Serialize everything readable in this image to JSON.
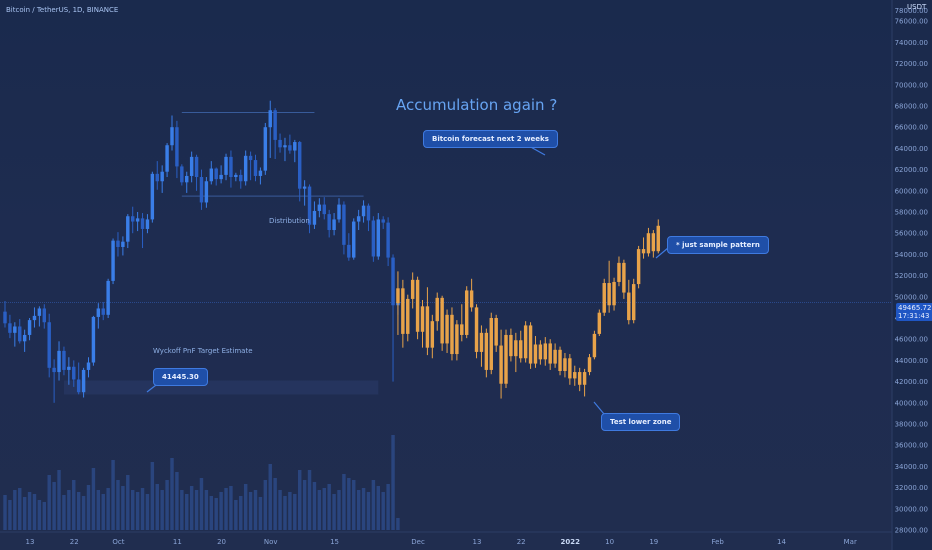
{
  "header": {
    "symbol_line": "Bitcoin / TetherUS, 1D, BINANCE",
    "currency": "USDT"
  },
  "price_tag": {
    "price": "49465.72",
    "countdown": "17:31:43"
  },
  "annotations": {
    "headline": "Accumulation again ?",
    "forecast_callout": "Bitcoin forecast next 2 weeks",
    "pattern_callout": "* just sample pattern",
    "lower_zone_callout": "Test lower zone",
    "target_callout": "41445.30",
    "wyckoff_label": "Wyckoff PnF Target Estimate",
    "distribution_label": "Distribution"
  },
  "colors": {
    "candle": "#3a7ee8",
    "candle_dark": "#2a5fc4",
    "forecast": "#e8a34a",
    "volume": "#2d4a86",
    "axis_text": "#8aa4d6",
    "callout_bg": "#1f4fa8"
  },
  "chart_data": {
    "type": "candlestick",
    "y_axis": {
      "range": [
        28000,
        78000
      ],
      "ticks": [
        28000,
        30000,
        32000,
        34000,
        36000,
        38000,
        40000,
        42000,
        44000,
        46000,
        48000,
        50000,
        52000,
        54000,
        56000,
        58000,
        60000,
        62000,
        64000,
        66000,
        68000,
        70000,
        72000,
        74000,
        76000
      ],
      "tick_labels": [
        "28000.00",
        "30000.00",
        "32000.00",
        "34000.00",
        "36000.00",
        "38000.00",
        "40000.00",
        "42000.00",
        "44000.00",
        "46000.00",
        "48000.00",
        "50000.00",
        "52000.00",
        "54000.00",
        "56000.00",
        "58000.00",
        "60000.00",
        "62000.00",
        "64000.00",
        "66000.00",
        "68000.00",
        "70000.00",
        "72000.00",
        "74000.00",
        "76000.00"
      ],
      "top_label": "78000.00"
    },
    "x_axis": {
      "day_range": [
        0,
        170
      ],
      "ticks": [
        {
          "day": 0,
          "label": "13"
        },
        {
          "day": 9,
          "label": "22"
        },
        {
          "day": 18,
          "label": "Oct"
        },
        {
          "day": 30,
          "label": "11"
        },
        {
          "day": 39,
          "label": "20"
        },
        {
          "day": 49,
          "label": "Nov"
        },
        {
          "day": 62,
          "label": "15"
        },
        {
          "day": 79,
          "label": "Dec"
        },
        {
          "day": 91,
          "label": "13"
        },
        {
          "day": 100,
          "label": "22"
        },
        {
          "day": 110,
          "label": "2022"
        },
        {
          "day": 118,
          "label": "10"
        },
        {
          "day": 127,
          "label": "19"
        },
        {
          "day": 140,
          "label": "Feb"
        },
        {
          "day": 153,
          "label": "14"
        },
        {
          "day": 167,
          "label": "Mar"
        }
      ]
    },
    "reference_lines": {
      "current_price": 49465.72,
      "distribution_top": 67400,
      "distribution_bottom": 59500,
      "wyckoff_target": 41445.3
    },
    "historical": [
      {
        "o": 48600,
        "h": 49600,
        "l": 47100,
        "c": 47500
      },
      {
        "o": 47500,
        "h": 48300,
        "l": 46100,
        "c": 46600
      },
      {
        "o": 46600,
        "h": 47600,
        "l": 45300,
        "c": 47200
      },
      {
        "o": 47200,
        "h": 47900,
        "l": 45600,
        "c": 45800
      },
      {
        "o": 45800,
        "h": 46900,
        "l": 44800,
        "c": 46400
      },
      {
        "o": 46400,
        "h": 48000,
        "l": 45900,
        "c": 47800
      },
      {
        "o": 47800,
        "h": 49000,
        "l": 47100,
        "c": 48200
      },
      {
        "o": 48200,
        "h": 49100,
        "l": 47200,
        "c": 48900
      },
      {
        "o": 48900,
        "h": 49300,
        "l": 47000,
        "c": 47600
      },
      {
        "o": 47600,
        "h": 48400,
        "l": 42400,
        "c": 43300
      },
      {
        "o": 43300,
        "h": 44100,
        "l": 40000,
        "c": 42900
      },
      {
        "o": 42900,
        "h": 45800,
        "l": 42100,
        "c": 44900
      },
      {
        "o": 44900,
        "h": 45300,
        "l": 42600,
        "c": 43100
      },
      {
        "o": 43100,
        "h": 44300,
        "l": 41700,
        "c": 43400
      },
      {
        "o": 43400,
        "h": 44000,
        "l": 41500,
        "c": 42200
      },
      {
        "o": 42200,
        "h": 43800,
        "l": 40800,
        "c": 41000
      },
      {
        "o": 41000,
        "h": 43300,
        "l": 40500,
        "c": 43100
      },
      {
        "o": 43100,
        "h": 44300,
        "l": 42400,
        "c": 43800
      },
      {
        "o": 43800,
        "h": 48200,
        "l": 43500,
        "c": 48100
      },
      {
        "o": 48100,
        "h": 49400,
        "l": 47000,
        "c": 48900
      },
      {
        "o": 48900,
        "h": 49500,
        "l": 47800,
        "c": 48300
      },
      {
        "o": 48300,
        "h": 51700,
        "l": 48000,
        "c": 51500
      },
      {
        "o": 51500,
        "h": 55500,
        "l": 51200,
        "c": 55300
      },
      {
        "o": 55300,
        "h": 56100,
        "l": 53800,
        "c": 54700
      },
      {
        "o": 54700,
        "h": 55700,
        "l": 53900,
        "c": 55200
      },
      {
        "o": 55200,
        "h": 57800,
        "l": 54600,
        "c": 57600
      },
      {
        "o": 57600,
        "h": 58500,
        "l": 56000,
        "c": 57100
      },
      {
        "o": 57100,
        "h": 58000,
        "l": 56200,
        "c": 57400
      },
      {
        "o": 57400,
        "h": 57900,
        "l": 54600,
        "c": 56400
      },
      {
        "o": 56400,
        "h": 57800,
        "l": 56000,
        "c": 57300
      },
      {
        "o": 57300,
        "h": 61800,
        "l": 57000,
        "c": 61600
      },
      {
        "o": 61600,
        "h": 62800,
        "l": 60100,
        "c": 60900
      },
      {
        "o": 60900,
        "h": 62400,
        "l": 59800,
        "c": 61800
      },
      {
        "o": 61800,
        "h": 64500,
        "l": 61300,
        "c": 64300
      },
      {
        "o": 64300,
        "h": 67100,
        "l": 63800,
        "c": 66000
      },
      {
        "o": 66000,
        "h": 66600,
        "l": 61200,
        "c": 62300
      },
      {
        "o": 62300,
        "h": 62500,
        "l": 60500,
        "c": 60800
      },
      {
        "o": 60800,
        "h": 61800,
        "l": 59800,
        "c": 61400
      },
      {
        "o": 61400,
        "h": 63700,
        "l": 60800,
        "c": 63200
      },
      {
        "o": 63200,
        "h": 63400,
        "l": 60000,
        "c": 61300
      },
      {
        "o": 61300,
        "h": 62000,
        "l": 58200,
        "c": 58900
      },
      {
        "o": 58900,
        "h": 61300,
        "l": 58400,
        "c": 60900
      },
      {
        "o": 60900,
        "h": 62800,
        "l": 60600,
        "c": 62100
      },
      {
        "o": 62100,
        "h": 62200,
        "l": 60500,
        "c": 61100
      },
      {
        "o": 61100,
        "h": 62400,
        "l": 60700,
        "c": 61500
      },
      {
        "o": 61500,
        "h": 63500,
        "l": 61000,
        "c": 63200
      },
      {
        "o": 63200,
        "h": 63800,
        "l": 60300,
        "c": 61300
      },
      {
        "o": 61300,
        "h": 61700,
        "l": 60900,
        "c": 61500
      },
      {
        "o": 61500,
        "h": 62000,
        "l": 60200,
        "c": 60900
      },
      {
        "o": 60900,
        "h": 63800,
        "l": 60500,
        "c": 63300
      },
      {
        "o": 63300,
        "h": 63700,
        "l": 61000,
        "c": 62900
      },
      {
        "o": 62900,
        "h": 63400,
        "l": 60900,
        "c": 61400
      },
      {
        "o": 61400,
        "h": 62200,
        "l": 60600,
        "c": 61900
      },
      {
        "o": 61900,
        "h": 66400,
        "l": 61500,
        "c": 66000
      },
      {
        "o": 66000,
        "h": 68500,
        "l": 63100,
        "c": 67600
      },
      {
        "o": 67600,
        "h": 67800,
        "l": 63000,
        "c": 64800
      },
      {
        "o": 64800,
        "h": 65400,
        "l": 63600,
        "c": 64100
      },
      {
        "o": 64100,
        "h": 65000,
        "l": 62800,
        "c": 64300
      },
      {
        "o": 64300,
        "h": 65300,
        "l": 63500,
        "c": 63800
      },
      {
        "o": 63800,
        "h": 64800,
        "l": 62700,
        "c": 64600
      },
      {
        "o": 64600,
        "h": 64700,
        "l": 59000,
        "c": 60200
      },
      {
        "o": 60200,
        "h": 61000,
        "l": 58600,
        "c": 60400
      },
      {
        "o": 60400,
        "h": 60600,
        "l": 56000,
        "c": 56800
      },
      {
        "o": 56800,
        "h": 59000,
        "l": 56400,
        "c": 58100
      },
      {
        "o": 58100,
        "h": 59300,
        "l": 57500,
        "c": 58700
      },
      {
        "o": 58700,
        "h": 59400,
        "l": 57300,
        "c": 57800
      },
      {
        "o": 57800,
        "h": 58200,
        "l": 55600,
        "c": 56300
      },
      {
        "o": 56300,
        "h": 57900,
        "l": 55800,
        "c": 57300
      },
      {
        "o": 57300,
        "h": 59300,
        "l": 57000,
        "c": 58700
      },
      {
        "o": 58700,
        "h": 59000,
        "l": 54000,
        "c": 54900
      },
      {
        "o": 54900,
        "h": 56000,
        "l": 53400,
        "c": 53700
      },
      {
        "o": 53700,
        "h": 57400,
        "l": 53500,
        "c": 57100
      },
      {
        "o": 57100,
        "h": 58200,
        "l": 56300,
        "c": 57600
      },
      {
        "o": 57600,
        "h": 59100,
        "l": 57000,
        "c": 58600
      },
      {
        "o": 58600,
        "h": 58800,
        "l": 56200,
        "c": 57200
      },
      {
        "o": 57200,
        "h": 57600,
        "l": 53300,
        "c": 53800
      },
      {
        "o": 53800,
        "h": 57900,
        "l": 53500,
        "c": 57300
      },
      {
        "o": 57300,
        "h": 57600,
        "l": 56400,
        "c": 57000
      },
      {
        "o": 57000,
        "h": 57500,
        "l": 52900,
        "c": 53700
      },
      {
        "o": 53700,
        "h": 54000,
        "l": 42000,
        "c": 49200
      },
      {
        "o": 49200,
        "h": 50200,
        "l": 48300,
        "c": 49465
      }
    ],
    "forecast": [
      {
        "o": 49400,
        "h": 52400,
        "l": 46400,
        "c": 50800
      },
      {
        "o": 50800,
        "h": 51600,
        "l": 45200,
        "c": 46500
      },
      {
        "o": 46500,
        "h": 50200,
        "l": 45800,
        "c": 49800
      },
      {
        "o": 49800,
        "h": 52300,
        "l": 48900,
        "c": 51600
      },
      {
        "o": 51600,
        "h": 51900,
        "l": 46000,
        "c": 46700
      },
      {
        "o": 46700,
        "h": 49700,
        "l": 45200,
        "c": 49100
      },
      {
        "o": 49100,
        "h": 50900,
        "l": 44500,
        "c": 45200
      },
      {
        "o": 45200,
        "h": 48300,
        "l": 44200,
        "c": 47700
      },
      {
        "o": 47700,
        "h": 50400,
        "l": 46800,
        "c": 49900
      },
      {
        "o": 49900,
        "h": 50100,
        "l": 44900,
        "c": 45600
      },
      {
        "o": 45600,
        "h": 48800,
        "l": 44700,
        "c": 48300
      },
      {
        "o": 48300,
        "h": 49000,
        "l": 44000,
        "c": 44600
      },
      {
        "o": 44600,
        "h": 47800,
        "l": 44000,
        "c": 47400
      },
      {
        "o": 47400,
        "h": 49300,
        "l": 45800,
        "c": 46400
      },
      {
        "o": 46400,
        "h": 51000,
        "l": 46100,
        "c": 50600
      },
      {
        "o": 50600,
        "h": 51700,
        "l": 48600,
        "c": 49000
      },
      {
        "o": 49000,
        "h": 49300,
        "l": 44200,
        "c": 44800
      },
      {
        "o": 44800,
        "h": 47300,
        "l": 43400,
        "c": 46600
      },
      {
        "o": 46600,
        "h": 47000,
        "l": 42400,
        "c": 43100
      },
      {
        "o": 43100,
        "h": 48500,
        "l": 42700,
        "c": 48000
      },
      {
        "o": 48000,
        "h": 48300,
        "l": 44800,
        "c": 45400
      },
      {
        "o": 45400,
        "h": 46900,
        "l": 40400,
        "c": 41800
      },
      {
        "o": 41800,
        "h": 46900,
        "l": 41400,
        "c": 46400
      },
      {
        "o": 46400,
        "h": 47000,
        "l": 43900,
        "c": 44400
      },
      {
        "o": 44400,
        "h": 46600,
        "l": 42900,
        "c": 45900
      },
      {
        "o": 45900,
        "h": 46800,
        "l": 43800,
        "c": 44200
      },
      {
        "o": 44200,
        "h": 47700,
        "l": 43800,
        "c": 47300
      },
      {
        "o": 47300,
        "h": 47600,
        "l": 43200,
        "c": 43700
      },
      {
        "o": 43700,
        "h": 46300,
        "l": 43300,
        "c": 45500
      },
      {
        "o": 45500,
        "h": 45900,
        "l": 43600,
        "c": 44100
      },
      {
        "o": 44100,
        "h": 46200,
        "l": 43500,
        "c": 45600
      },
      {
        "o": 45600,
        "h": 46000,
        "l": 43100,
        "c": 43700
      },
      {
        "o": 43700,
        "h": 45600,
        "l": 43300,
        "c": 45000
      },
      {
        "o": 45000,
        "h": 45300,
        "l": 42600,
        "c": 43000
      },
      {
        "o": 43000,
        "h": 44700,
        "l": 42400,
        "c": 44200
      },
      {
        "o": 44200,
        "h": 44600,
        "l": 41700,
        "c": 42300
      },
      {
        "o": 42300,
        "h": 43500,
        "l": 41600,
        "c": 42900
      },
      {
        "o": 42900,
        "h": 43300,
        "l": 41100,
        "c": 41700
      },
      {
        "o": 41700,
        "h": 43200,
        "l": 40600,
        "c": 42900
      },
      {
        "o": 42900,
        "h": 44600,
        "l": 42600,
        "c": 44300
      },
      {
        "o": 44300,
        "h": 46800,
        "l": 44100,
        "c": 46500
      },
      {
        "o": 46500,
        "h": 48800,
        "l": 46300,
        "c": 48500
      },
      {
        "o": 48500,
        "h": 51700,
        "l": 48200,
        "c": 51300
      },
      {
        "o": 51300,
        "h": 53400,
        "l": 48500,
        "c": 49200
      },
      {
        "o": 49200,
        "h": 51800,
        "l": 48700,
        "c": 51400
      },
      {
        "o": 51400,
        "h": 53800,
        "l": 51000,
        "c": 53200
      },
      {
        "o": 53200,
        "h": 53500,
        "l": 49800,
        "c": 50400
      },
      {
        "o": 50400,
        "h": 51600,
        "l": 47400,
        "c": 47800
      },
      {
        "o": 47800,
        "h": 51700,
        "l": 47500,
        "c": 51200
      },
      {
        "o": 51200,
        "h": 54800,
        "l": 50800,
        "c": 54500
      },
      {
        "o": 54500,
        "h": 55600,
        "l": 53600,
        "c": 54100
      },
      {
        "o": 54100,
        "h": 56500,
        "l": 53800,
        "c": 56000
      },
      {
        "o": 56000,
        "h": 56300,
        "l": 53700,
        "c": 54300
      },
      {
        "o": 54300,
        "h": 57300,
        "l": 54100,
        "c": 56700
      }
    ],
    "volume": [
      0.35,
      0.3,
      0.4,
      0.42,
      0.33,
      0.38,
      0.36,
      0.3,
      0.28,
      0.55,
      0.48,
      0.6,
      0.35,
      0.4,
      0.5,
      0.38,
      0.34,
      0.45,
      0.62,
      0.4,
      0.36,
      0.42,
      0.7,
      0.5,
      0.44,
      0.55,
      0.4,
      0.38,
      0.42,
      0.36,
      0.68,
      0.46,
      0.4,
      0.5,
      0.72,
      0.58,
      0.4,
      0.36,
      0.44,
      0.4,
      0.52,
      0.4,
      0.34,
      0.32,
      0.38,
      0.42,
      0.44,
      0.3,
      0.34,
      0.46,
      0.38,
      0.4,
      0.33,
      0.5,
      0.66,
      0.52,
      0.4,
      0.34,
      0.38,
      0.36,
      0.6,
      0.5,
      0.6,
      0.48,
      0.4,
      0.42,
      0.46,
      0.36,
      0.4,
      0.56,
      0.52,
      0.5,
      0.4,
      0.42,
      0.38,
      0.5,
      0.44,
      0.38,
      0.46,
      0.95,
      0.12
    ]
  }
}
